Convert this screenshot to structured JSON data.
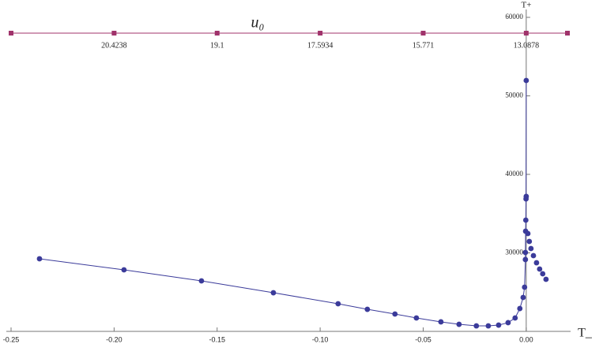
{
  "chart_data": {
    "type": "line",
    "title": "u₀",
    "xlabel": "T_",
    "ylabel": "T+",
    "xlim": [
      -0.25,
      0.02
    ],
    "ylim": [
      20000,
      60000
    ],
    "xticks": [
      -0.25,
      {
        "value": -0.2,
        "label": "-0.20"
      },
      -0.15,
      {
        "value": -0.1,
        "label": "-0.10"
      },
      -0.05,
      {
        "value": 0,
        "label": "0.00"
      }
    ],
    "yticks": [
      30000,
      40000,
      50000,
      60000
    ],
    "top_axis": {
      "color": "#a0336b",
      "markers_x": [
        -0.25,
        -0.2,
        -0.15,
        -0.1,
        -0.05,
        0,
        0.02
      ],
      "ticks": [
        {
          "value": -0.2,
          "label": "20.4238"
        },
        {
          "value": -0.15,
          "label": "19.1"
        },
        {
          "value": -0.1,
          "label": "17.5934"
        },
        {
          "value": -0.05,
          "label": "15.771"
        },
        {
          "value": 0,
          "label": "13.0878"
        }
      ]
    },
    "series": [
      {
        "color": "#3b3b9a",
        "line": true,
        "x": [
          -0.2362,
          -0.1952,
          -0.1576,
          -0.1227,
          -0.0913,
          -0.0771,
          -0.0637,
          -0.0533,
          -0.0414,
          -0.0326,
          -0.0242,
          -0.0184,
          -0.0134,
          -0.0088,
          -0.0054,
          -0.0031,
          -0.0015,
          -0.0008,
          -0.0004,
          -0.0004,
          -0.0003,
          -0.0002,
          -0.0001,
          0
        ],
        "values": [
          29250,
          27840,
          26430,
          24920,
          23520,
          22810,
          22210,
          21710,
          21210,
          20900,
          20700,
          20700,
          20800,
          21110,
          21710,
          22910,
          24320,
          25630,
          29150,
          30050,
          32760,
          34170,
          36880,
          51960
        ]
      },
      {
        "color": "#3b3b9a",
        "line": false,
        "x": [
          0,
          0.0008,
          0.0015,
          0.0023,
          0.0035,
          0.005,
          0.0065,
          0.008,
          0.0096
        ],
        "values": [
          37190,
          32460,
          31460,
          30550,
          29650,
          28740,
          27940,
          27340,
          26630
        ]
      }
    ]
  }
}
